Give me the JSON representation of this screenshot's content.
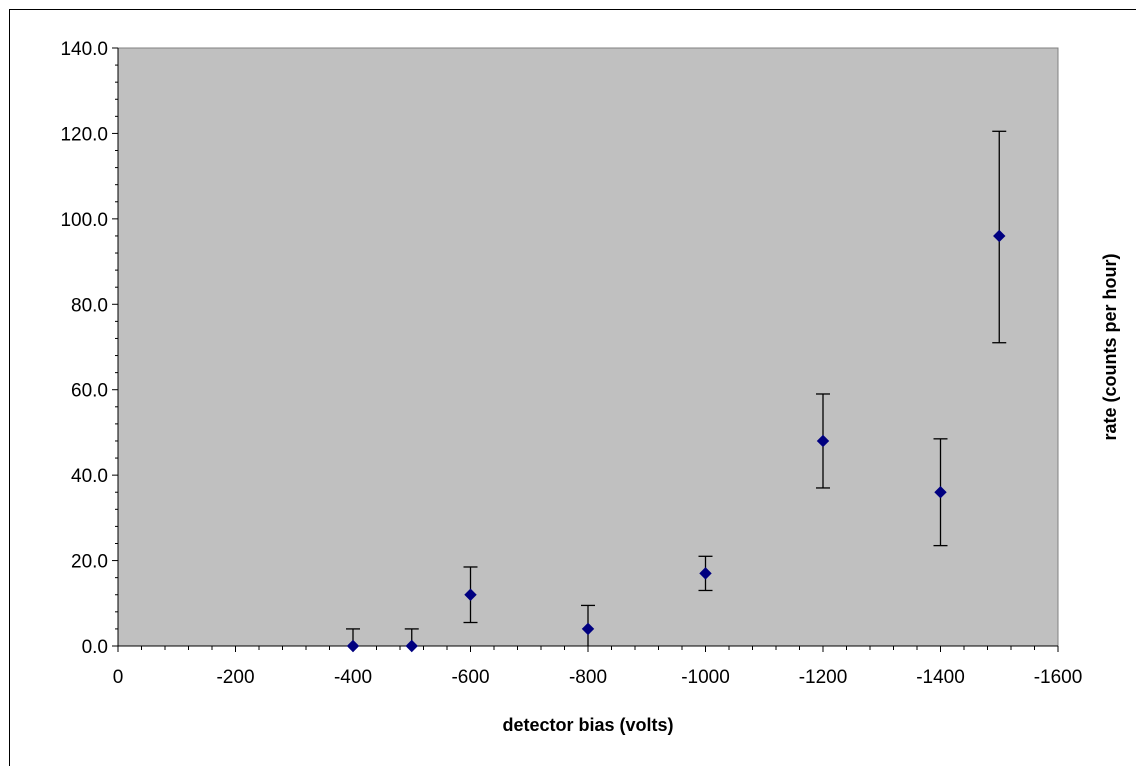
{
  "chart_data": {
    "type": "scatter",
    "title": "",
    "xlabel": "detector bias (volts)",
    "ylabel": "rate (counts per hour)",
    "xlim": [
      0,
      -1600
    ],
    "ylim": [
      0,
      140
    ],
    "x_ticks": [
      0,
      -200,
      -400,
      -600,
      -800,
      -1000,
      -1200,
      -1400,
      -1600
    ],
    "x_tick_labels": [
      "0",
      "-200",
      "-400",
      "-600",
      "-800",
      "-1000",
      "-1200",
      "-1400",
      "-1600"
    ],
    "y_ticks": [
      0,
      20,
      40,
      60,
      80,
      100,
      120,
      140
    ],
    "y_tick_labels": [
      "0.0",
      "20.0",
      "40.0",
      "60.0",
      "80.0",
      "100.0",
      "120.0",
      "140.0"
    ],
    "grid": false,
    "plot_background": "#c0c0c0",
    "marker_color": "#000080",
    "marker": "diamond",
    "points": [
      {
        "x": -400,
        "y": 0.0,
        "err_low": 0.0,
        "err_high": 4.0
      },
      {
        "x": -500,
        "y": 0.0,
        "err_low": 0.0,
        "err_high": 4.0
      },
      {
        "x": -600,
        "y": 12.0,
        "err_low": 5.5,
        "err_high": 18.5
      },
      {
        "x": -800,
        "y": 4.0,
        "err_low": 0.0,
        "err_high": 9.5
      },
      {
        "x": -1000,
        "y": 17.0,
        "err_low": 13.0,
        "err_high": 21.0
      },
      {
        "x": -1200,
        "y": 48.0,
        "err_low": 37.0,
        "err_high": 59.0
      },
      {
        "x": -1400,
        "y": 36.0,
        "err_low": 23.5,
        "err_high": 48.5
      },
      {
        "x": -1500,
        "y": 96.0,
        "err_low": 71.0,
        "err_high": 120.5
      }
    ]
  }
}
